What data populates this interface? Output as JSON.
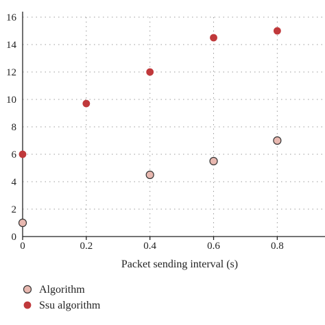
{
  "chart_data": {
    "type": "scatter",
    "title": "",
    "xlabel": "Packet sending interval (s)",
    "ylabel": "",
    "xlim": [
      0,
      0.95
    ],
    "ylim": [
      0,
      16
    ],
    "x_ticks": [
      0,
      0.2,
      0.4,
      0.6,
      0.8
    ],
    "x_tick_labels": [
      "0",
      "0.2",
      "0.4",
      "0.6",
      "0.8"
    ],
    "y_ticks": [
      0,
      2,
      4,
      6,
      8,
      10,
      12,
      14,
      16
    ],
    "y_tick_labels": [
      "0",
      "2",
      "4",
      "6",
      "8",
      "10",
      "12",
      "14",
      "16"
    ],
    "grid": true,
    "legend_position": "bottom-left",
    "series": [
      {
        "name": "Algorithm",
        "color": "#e8b8b0",
        "stroke": "#333333",
        "x": [
          0,
          0.4,
          0.6,
          0.8
        ],
        "y": [
          1.0,
          4.5,
          5.5,
          7.0
        ]
      },
      {
        "name": "Ssu algorithm",
        "color": "#c0393b",
        "stroke": "#c0393b",
        "x": [
          0,
          0.2,
          0.4,
          0.6,
          0.8
        ],
        "y": [
          6.0,
          9.7,
          12.0,
          14.5,
          15.0
        ]
      }
    ]
  }
}
